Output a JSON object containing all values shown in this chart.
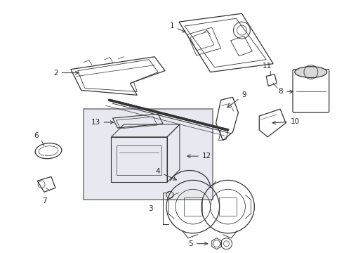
{
  "background_color": "#ffffff",
  "line_color": "#333333",
  "box_fill": "#e8e8f0",
  "figsize": [
    4.9,
    3.6
  ],
  "dpi": 100
}
